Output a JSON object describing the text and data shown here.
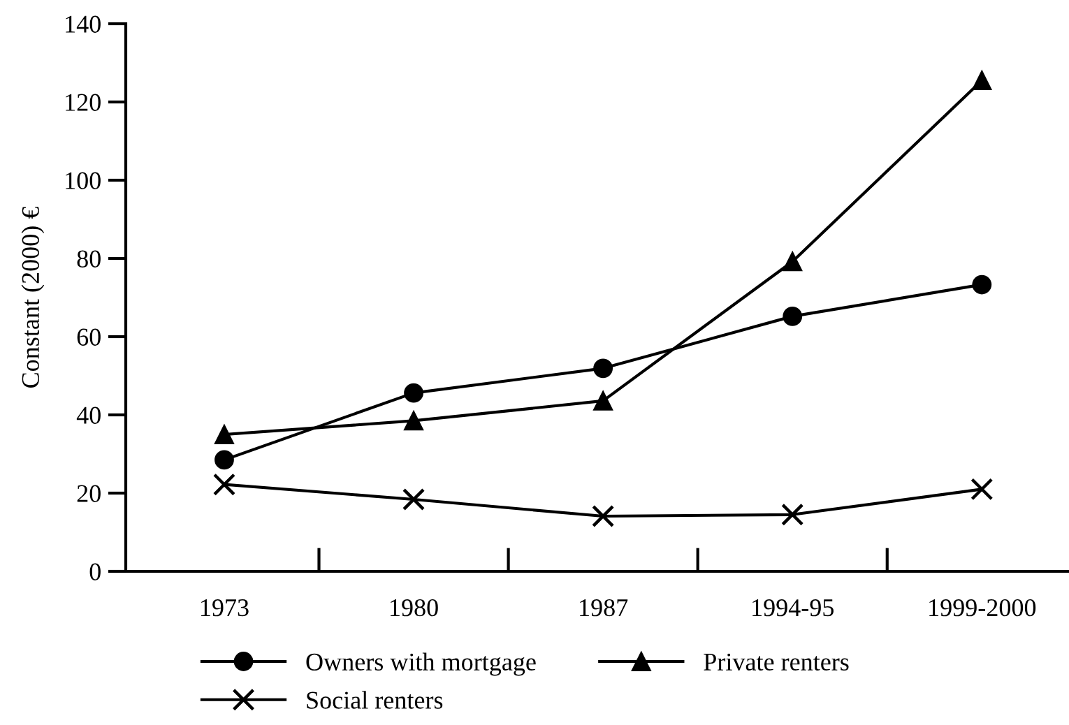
{
  "chart_data": {
    "type": "line",
    "ylabel": "Constant (2000) €",
    "categories": [
      "1973",
      "1980",
      "1987",
      "1994-95",
      "1999-2000"
    ],
    "series": [
      {
        "name": "Owners with mortgage",
        "color": "#000000",
        "marker": "circle",
        "values": [
          28.5,
          45.6,
          51.9,
          65.2,
          73.3
        ]
      },
      {
        "name": "Social renters",
        "color": "#000000",
        "marker": "cross",
        "values": [
          22.2,
          18.4,
          14.1,
          14.5,
          21.0
        ]
      },
      {
        "name": "Private renters",
        "color": "#000000",
        "marker": "triangle",
        "values": [
          35.0,
          38.5,
          43.6,
          79.2,
          125.5
        ]
      }
    ],
    "ylim": [
      0,
      140
    ],
    "yticks": [
      0,
      20,
      40,
      60,
      80,
      100,
      120,
      140
    ],
    "grid": false,
    "legend": "bottom",
    "line_style": "solid"
  }
}
